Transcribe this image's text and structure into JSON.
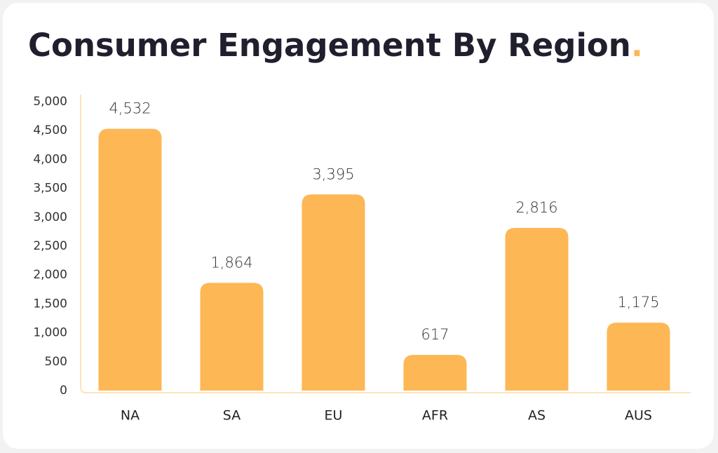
{
  "chart_data": {
    "type": "bar",
    "title": "Consumer Engagement By Region",
    "title_accent": ".",
    "categories": [
      "NA",
      "SA",
      "EU",
      "AFR",
      "AS",
      "AUS"
    ],
    "values": [
      4532,
      1864,
      3395,
      617,
      2816,
      1175
    ],
    "value_labels": [
      "4,532",
      "1,864",
      "3,395",
      "617",
      "2,816",
      "1,175"
    ],
    "color": "#fdb755",
    "accent_color": "#fdb755",
    "ylim": [
      0,
      5000
    ],
    "yticks": [
      0,
      500,
      {
        "value": 1000,
        "label": "1,000"
      },
      {
        "value": 1500,
        "label": "1,500"
      },
      {
        "value": 2000,
        "label": "2,000"
      },
      {
        "value": 2500,
        "label": "2,500"
      },
      {
        "value": 3000,
        "label": "3,000"
      },
      {
        "value": 3500,
        "label": "3,500"
      },
      {
        "value": 4000,
        "label": "4,000"
      },
      {
        "value": 4500,
        "label": "4,500"
      },
      {
        "value": 5000,
        "label": "5,000"
      }
    ],
    "grid": false
  }
}
